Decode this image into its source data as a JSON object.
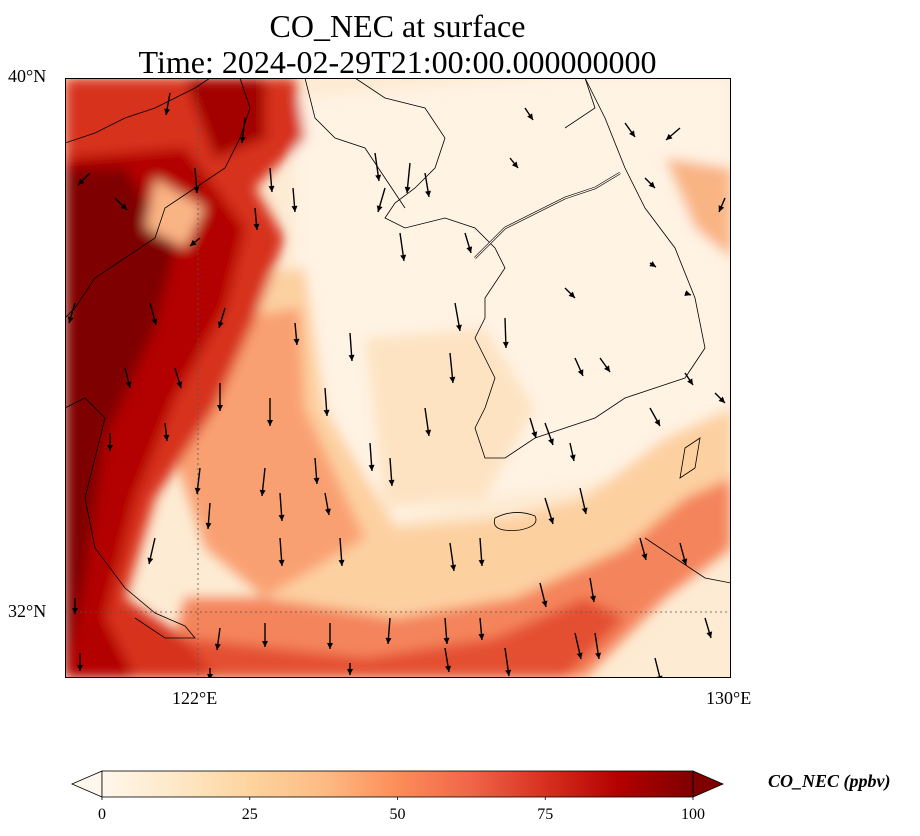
{
  "title": {
    "line1": "CO_NEC at surface",
    "line2": "Time: 2024-02-29T21:00:00.000000000"
  },
  "map": {
    "projection": "lat-lon",
    "lon_range": [
      120,
      130
    ],
    "lat_range": [
      31,
      40
    ],
    "xticks": [
      {
        "value": 122,
        "label": "122°E"
      },
      {
        "value": 130,
        "label": "130°E"
      }
    ],
    "yticks": [
      {
        "value": 40,
        "label": "40°N"
      },
      {
        "value": 32,
        "label": "32°N"
      }
    ],
    "gridlines": "dotted at 122°E and 32°N",
    "field": "CO_NEC",
    "field_description": "High values (dark red) along the Chinese coast in the west and a diagonal band to the southeast; low values (pale) over the Yellow Sea and Korean peninsula",
    "wind_vectors": "mostly north-to-south flow over the Yellow Sea",
    "colormap": "OrRd"
  },
  "colorbar": {
    "min": 0,
    "max": 100,
    "extend": "both",
    "ticks": [
      "0",
      "25",
      "50",
      "75",
      "100"
    ],
    "label": "CO_NEC (ppbv)",
    "colors": [
      "#fff7ec",
      "#fee8c8",
      "#fdd49e",
      "#fdbb84",
      "#fc8d59",
      "#ef6548",
      "#d7301f",
      "#b30000",
      "#7f0000"
    ]
  }
}
